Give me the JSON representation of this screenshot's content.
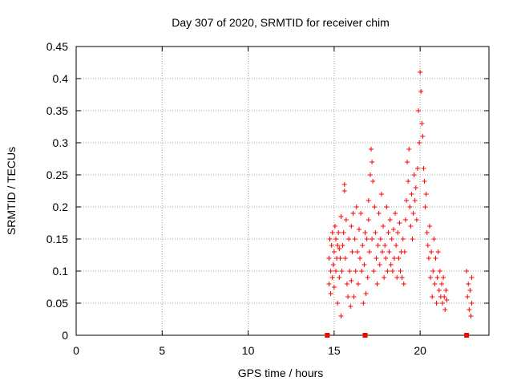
{
  "chart_data": {
    "type": "scatter",
    "title": "Day 307 of 2020, SRMTID for receiver chim",
    "xlabel": "GPS time / hours",
    "ylabel": "SRMTID / TECUs",
    "xlim": [
      0,
      24
    ],
    "ylim": [
      0,
      0.45
    ],
    "xticks": [
      "0",
      "5",
      "10",
      "15",
      "20"
    ],
    "yticks": [
      "0",
      "0.05",
      "0.1",
      "0.15",
      "0.2",
      "0.25",
      "0.3",
      "0.35",
      "0.4",
      "0.45"
    ],
    "grid": true,
    "marker": "+",
    "color": "#ff0000",
    "series": [
      {
        "name": "SRMTID",
        "points": [
          [
            14.7,
            0.08
          ],
          [
            14.7,
            0.12
          ],
          [
            14.75,
            0.15
          ],
          [
            14.8,
            0.1
          ],
          [
            14.8,
            0.065
          ],
          [
            14.85,
            0.14
          ],
          [
            14.9,
            0.16
          ],
          [
            14.9,
            0.09
          ],
          [
            14.95,
            0.11
          ],
          [
            15.0,
            0.13
          ],
          [
            15.0,
            0.075
          ],
          [
            15.05,
            0.17
          ],
          [
            15.1,
            0.15
          ],
          [
            15.1,
            0.1
          ],
          [
            15.15,
            0.12
          ],
          [
            15.2,
            0.05
          ],
          [
            15.2,
            0.14
          ],
          [
            15.25,
            0.16
          ],
          [
            15.3,
            0.135
          ],
          [
            15.3,
            0.09
          ],
          [
            15.35,
            0.12
          ],
          [
            15.4,
            0.185
          ],
          [
            15.4,
            0.03
          ],
          [
            15.45,
            0.1
          ],
          [
            15.5,
            0.14
          ],
          [
            15.55,
            0.16
          ],
          [
            15.6,
            0.225
          ],
          [
            15.6,
            0.235
          ],
          [
            15.65,
            0.12
          ],
          [
            15.7,
            0.18
          ],
          [
            15.75,
            0.08
          ],
          [
            15.8,
            0.06
          ],
          [
            15.85,
            0.15
          ],
          [
            15.9,
            0.1
          ],
          [
            15.95,
            0.045
          ],
          [
            16.0,
            0.17
          ],
          [
            16.0,
            0.085
          ],
          [
            16.05,
            0.13
          ],
          [
            16.1,
            0.19
          ],
          [
            16.15,
            0.06
          ],
          [
            16.2,
            0.15
          ],
          [
            16.25,
            0.1
          ],
          [
            16.3,
            0.2
          ],
          [
            16.35,
            0.13
          ],
          [
            16.4,
            0.08
          ],
          [
            16.45,
            0.165
          ],
          [
            16.5,
            0.12
          ],
          [
            16.55,
            0.19
          ],
          [
            16.6,
            0.1
          ],
          [
            16.65,
            0.14
          ],
          [
            16.7,
            0.05
          ],
          [
            16.75,
            0.11
          ],
          [
            16.8,
            0.16
          ],
          [
            16.85,
            0.065
          ],
          [
            16.9,
            0.15
          ],
          [
            16.95,
            0.09
          ],
          [
            17.0,
            0.18
          ],
          [
            17.0,
            0.21
          ],
          [
            17.05,
            0.13
          ],
          [
            17.1,
            0.25
          ],
          [
            17.15,
            0.29
          ],
          [
            17.2,
            0.27
          ],
          [
            17.2,
            0.15
          ],
          [
            17.25,
            0.24
          ],
          [
            17.3,
            0.1
          ],
          [
            17.35,
            0.2
          ],
          [
            17.4,
            0.16
          ],
          [
            17.45,
            0.12
          ],
          [
            17.5,
            0.08
          ],
          [
            17.55,
            0.14
          ],
          [
            17.6,
            0.19
          ],
          [
            17.65,
            0.11
          ],
          [
            17.7,
            0.15
          ],
          [
            17.75,
            0.22
          ],
          [
            17.8,
            0.13
          ],
          [
            17.85,
            0.17
          ],
          [
            17.9,
            0.09
          ],
          [
            17.95,
            0.14
          ],
          [
            18.0,
            0.12
          ],
          [
            18.05,
            0.2
          ],
          [
            18.1,
            0.1
          ],
          [
            18.15,
            0.16
          ],
          [
            18.2,
            0.13
          ],
          [
            18.25,
            0.18
          ],
          [
            18.3,
            0.11
          ],
          [
            18.35,
            0.15
          ],
          [
            18.4,
            0.1
          ],
          [
            18.45,
            0.165
          ],
          [
            18.5,
            0.12
          ],
          [
            18.55,
            0.19
          ],
          [
            18.6,
            0.14
          ],
          [
            18.65,
            0.09
          ],
          [
            18.7,
            0.16
          ],
          [
            18.75,
            0.12
          ],
          [
            18.8,
            0.175
          ],
          [
            18.85,
            0.1
          ],
          [
            18.9,
            0.13
          ],
          [
            18.95,
            0.09
          ],
          [
            19.0,
            0.15
          ],
          [
            19.05,
            0.08
          ],
          [
            19.1,
            0.13
          ],
          [
            19.15,
            0.18
          ],
          [
            19.2,
            0.21
          ],
          [
            19.25,
            0.27
          ],
          [
            19.3,
            0.24
          ],
          [
            19.35,
            0.29
          ],
          [
            19.4,
            0.2
          ],
          [
            19.45,
            0.17
          ],
          [
            19.5,
            0.22
          ],
          [
            19.55,
            0.15
          ],
          [
            19.6,
            0.19
          ],
          [
            19.65,
            0.25
          ],
          [
            19.7,
            0.21
          ],
          [
            19.75,
            0.23
          ],
          [
            19.8,
            0.18
          ],
          [
            19.85,
            0.26
          ],
          [
            19.9,
            0.35
          ],
          [
            19.95,
            0.3
          ],
          [
            20.0,
            0.41
          ],
          [
            20.05,
            0.38
          ],
          [
            20.1,
            0.33
          ],
          [
            20.15,
            0.31
          ],
          [
            20.2,
            0.26
          ],
          [
            20.25,
            0.24
          ],
          [
            20.3,
            0.2
          ],
          [
            20.35,
            0.22
          ],
          [
            20.4,
            0.16
          ],
          [
            20.45,
            0.14
          ],
          [
            20.5,
            0.12
          ],
          [
            20.55,
            0.17
          ],
          [
            20.6,
            0.09
          ],
          [
            20.65,
            0.13
          ],
          [
            20.7,
            0.06
          ],
          [
            20.75,
            0.1
          ],
          [
            20.8,
            0.15
          ],
          [
            20.85,
            0.08
          ],
          [
            20.9,
            0.12
          ],
          [
            20.95,
            0.05
          ],
          [
            21.0,
            0.09
          ],
          [
            21.05,
            0.13
          ],
          [
            21.1,
            0.07
          ],
          [
            21.15,
            0.1
          ],
          [
            21.2,
            0.06
          ],
          [
            21.25,
            0.08
          ],
          [
            21.3,
            0.05
          ],
          [
            21.35,
            0.09
          ],
          [
            21.4,
            0.06
          ],
          [
            21.45,
            0.04
          ],
          [
            21.5,
            0.07
          ],
          [
            21.55,
            0.055
          ],
          [
            22.7,
            0.1
          ],
          [
            22.75,
            0.06
          ],
          [
            22.8,
            0.08
          ],
          [
            22.85,
            0.04
          ],
          [
            22.9,
            0.07
          ],
          [
            22.95,
            0.03
          ],
          [
            23.0,
            0.09
          ],
          [
            23.0,
            0.05
          ]
        ]
      }
    ],
    "zero_markers": [
      14.6,
      16.8,
      22.7
    ]
  }
}
